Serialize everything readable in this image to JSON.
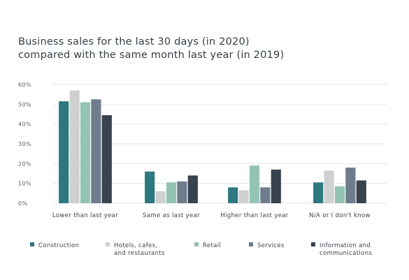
{
  "chart_data": {
    "type": "bar",
    "title_lines": [
      "Business sales for the last 30 days (in 2020)",
      "compared with the same month last year (in 2019)"
    ],
    "categories": [
      "Lower than last year",
      "Same as last year",
      "Higher than last year",
      "N/A or I don't know"
    ],
    "series": [
      {
        "name": "Construction",
        "label_lines": [
          "Construction"
        ],
        "color": "#2e7880",
        "values": [
          51.5,
          16,
          8,
          10.5
        ]
      },
      {
        "name": "Hotels, cafes, and restaurants",
        "label_lines": [
          "Hotels, cafes,",
          "and restaurants"
        ],
        "color": "#d0d0d0",
        "values": [
          57,
          6,
          6.5,
          16.5
        ]
      },
      {
        "name": "Retail",
        "label_lines": [
          "Retail"
        ],
        "color": "#93c3b2",
        "values": [
          51,
          10.5,
          19,
          8.5
        ]
      },
      {
        "name": "Services",
        "label_lines": [
          "Services"
        ],
        "color": "#6e7c8d",
        "values": [
          52.5,
          11,
          8,
          18
        ]
      },
      {
        "name": "Information and communications",
        "label_lines": [
          "Information and",
          "communications"
        ],
        "color": "#38434f",
        "values": [
          44.5,
          14,
          17,
          11.5
        ]
      }
    ],
    "yticks": [
      "0%",
      "10%",
      "20%",
      "30%",
      "40%",
      "50%",
      "60%"
    ],
    "ylim": [
      0,
      60
    ],
    "grid": true,
    "legend": "bottom"
  }
}
